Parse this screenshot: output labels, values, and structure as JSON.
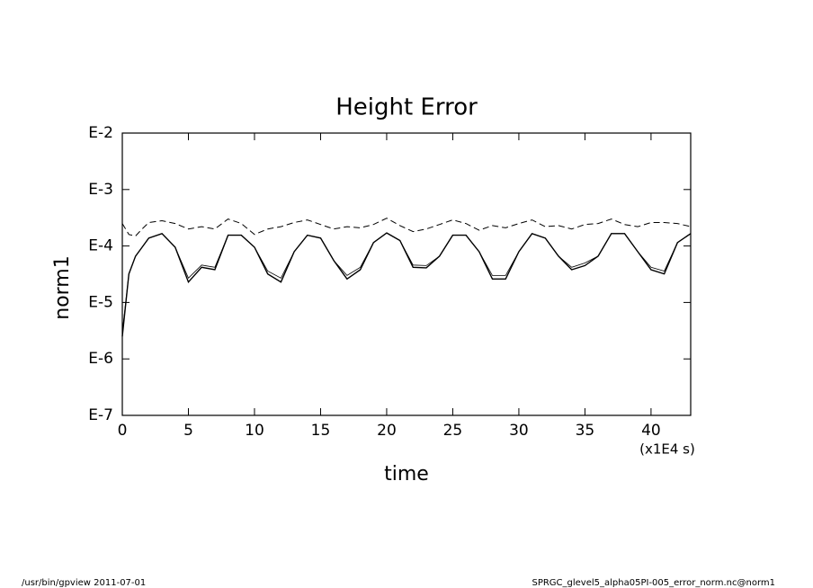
{
  "chart_data": {
    "type": "line",
    "title": "Height Error",
    "xlabel": "time",
    "ylabel": "norm1",
    "xunit": "(x1E4 s)",
    "footer_left": "/usr/bin/gpview  2011-07-01",
    "footer_right": "SPRGC_glevel5_alpha05PI-005_error_norm.nc@norm1",
    "yscale": "log",
    "xlim": [
      0,
      43
    ],
    "xticks": [
      0,
      5,
      10,
      15,
      20,
      25,
      30,
      35,
      40
    ],
    "ylim": [
      1e-07,
      0.01
    ],
    "yticks": [
      {
        "value": 1e-07,
        "label": "E-7"
      },
      {
        "value": 1e-06,
        "label": "E-6"
      },
      {
        "value": 1e-05,
        "label": "E-5"
      },
      {
        "value": 0.0001,
        "label": "E-4"
      },
      {
        "value": 0.001,
        "label": "E-3"
      },
      {
        "value": 0.01,
        "label": "E-2"
      }
    ],
    "x": [
      0,
      0.5,
      1,
      1.5,
      2,
      3,
      4,
      5,
      6,
      7,
      8,
      9,
      10,
      11,
      12,
      13,
      14,
      15,
      16,
      17,
      18,
      19,
      20,
      21,
      22,
      23,
      24,
      25,
      26,
      27,
      28,
      29,
      30,
      31,
      32,
      33,
      34,
      35,
      36,
      37,
      38,
      39,
      40,
      41,
      42,
      43
    ],
    "series": [
      {
        "color": "#000000",
        "dash": "solid",
        "width": 1.4,
        "values": [
          2.5e-06,
          3.2e-05,
          6.6e-05,
          9.5e-05,
          0.000138,
          0.000166,
          9.5e-05,
          2.3e-05,
          4.2e-05,
          3.8e-05,
          0.000155,
          0.000155,
          9.5e-05,
          3.2e-05,
          2.3e-05,
          7.9e-05,
          0.000155,
          0.000138,
          5.5e-05,
          2.6e-05,
          3.8e-05,
          0.000115,
          0.00017,
          0.000125,
          4.2e-05,
          4.1e-05,
          6.6e-05,
          0.000155,
          0.000155,
          7.9e-05,
          2.6e-05,
          2.6e-05,
          7.9e-05,
          0.000166,
          0.000138,
          6.6e-05,
          3.8e-05,
          4.5e-05,
          6.6e-05,
          0.000166,
          0.000166,
          7.9e-05,
          3.8e-05,
          3.2e-05,
          0.000115,
          0.000166
        ]
      },
      {
        "color": "#000000",
        "dash": "solid",
        "width": 0.8,
        "values": [
          3e-06,
          3.2e-05,
          6.6e-05,
          9.5e-05,
          0.000138,
          0.000166,
          9.5e-05,
          2.7e-05,
          4.6e-05,
          4.2e-05,
          0.000155,
          0.000155,
          9.5e-05,
          3.6e-05,
          2.7e-05,
          7.9e-05,
          0.000155,
          0.000138,
          5.5e-05,
          3e-05,
          4.2e-05,
          0.000115,
          0.00017,
          0.000125,
          4.6e-05,
          4.5e-05,
          6.6e-05,
          0.000155,
          0.000155,
          7.9e-05,
          3e-05,
          3e-05,
          7.9e-05,
          0.000166,
          0.000138,
          6.6e-05,
          4.2e-05,
          5e-05,
          6.6e-05,
          0.000166,
          0.000166,
          7.9e-05,
          4.2e-05,
          3.6e-05,
          0.000115,
          0.000166
        ]
      },
      {
        "color": "#000000",
        "dash": "dashed",
        "width": 1,
        "values": [
          0.00025,
          0.00016,
          0.00015,
          0.0002,
          0.00026,
          0.00028,
          0.00025,
          0.0002,
          0.00022,
          0.0002,
          0.0003,
          0.00025,
          0.00016,
          0.0002,
          0.00022,
          0.00026,
          0.00029,
          0.00024,
          0.0002,
          0.00022,
          0.00021,
          0.00024,
          0.00031,
          0.00023,
          0.00018,
          0.0002,
          0.00024,
          0.00029,
          0.00025,
          0.00019,
          0.00023,
          0.00021,
          0.00025,
          0.00029,
          0.00022,
          0.00023,
          0.0002,
          0.00024,
          0.00025,
          0.0003,
          0.00024,
          0.00022,
          0.00026,
          0.00026,
          0.00025,
          0.00022
        ]
      }
    ]
  }
}
